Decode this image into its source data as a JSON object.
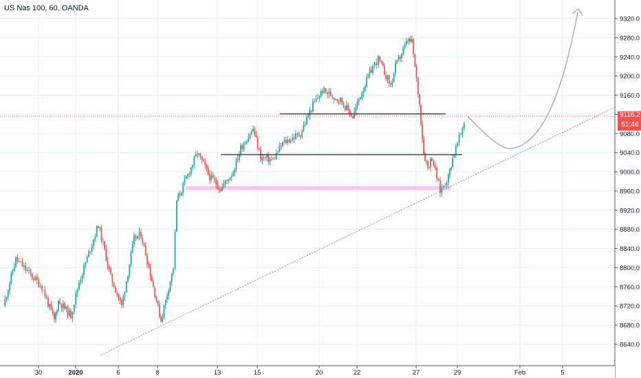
{
  "title": "US Nas 100, 60, OANDA",
  "current_price_label": "9116.2",
  "countdown_label": "51:46",
  "colors": {
    "up": "#26a69a",
    "down": "#ef5350",
    "grid": "#e7eef5",
    "axis_text": "#131722",
    "level_line": "#3a3a3a",
    "support_zone": "#f8c6f0",
    "projection": "#b0b3b8",
    "trendline": "#8a8d91",
    "price_line": "#ef5350"
  },
  "chart_data": {
    "type": "candlestick",
    "title": "US Nas 100, 60, OANDA",
    "timeframe": "60",
    "ylim": [
      8620,
      9350
    ],
    "y_ticks": [
      9320.0,
      9280.0,
      9240.0,
      9200.0,
      9160.0,
      9120.0,
      9080.0,
      9040.0,
      9000.0,
      8960.0,
      8920.0,
      8880.0,
      8840.0,
      8800.0,
      8760.0,
      8720.0,
      8680.0,
      8640.0
    ],
    "x_ticks": [
      "30",
      "2020",
      "6",
      "8",
      "13",
      "15",
      "20",
      "22",
      "27",
      "29",
      "Feb",
      "5"
    ],
    "grid": true,
    "last_price": 9116.2,
    "price_path": [
      {
        "x": "Dec 27",
        "y": 8720
      },
      {
        "x": "Dec 27 (late)",
        "y": 8818
      },
      {
        "x": "Dec 30",
        "y": 8760
      },
      {
        "x": "Dec 30 (late)",
        "y": 8690
      },
      {
        "x": "Dec 31",
        "y": 8730
      },
      {
        "x": "Dec 31 (late)",
        "y": 8700
      },
      {
        "x": "Jan 2",
        "y": 8770
      },
      {
        "x": "Jan 3",
        "y": 8890
      },
      {
        "x": "Jan 3 (late)",
        "y": 8780
      },
      {
        "x": "Jan 6",
        "y": 8720
      },
      {
        "x": "Jan 6 (late)",
        "y": 8860
      },
      {
        "x": "Jan 7",
        "y": 8870
      },
      {
        "x": "Jan 7 (late)",
        "y": 8760
      },
      {
        "x": "Jan 8",
        "y": 8690
      },
      {
        "x": "Jan 8 (late)",
        "y": 8800
      },
      {
        "x": "Jan 9",
        "y": 8940
      },
      {
        "x": "Jan 10",
        "y": 9040
      },
      {
        "x": "Jan 10 (late)",
        "y": 8990
      },
      {
        "x": "Jan 13",
        "y": 8965
      },
      {
        "x": "Jan 13 (late)",
        "y": 9000
      },
      {
        "x": "Jan 14",
        "y": 9050
      },
      {
        "x": "Jan 14 (late)",
        "y": 9090
      },
      {
        "x": "Jan 15",
        "y": 9030
      },
      {
        "x": "Jan 15 (late)",
        "y": 9025
      },
      {
        "x": "Jan 16",
        "y": 9060
      },
      {
        "x": "Jan 17",
        "y": 9080
      },
      {
        "x": "Jan 17 (late)",
        "y": 9140
      },
      {
        "x": "Jan 20",
        "y": 9170
      },
      {
        "x": "Jan 21",
        "y": 9150
      },
      {
        "x": "Jan 21 (late)",
        "y": 9115
      },
      {
        "x": "Jan 22",
        "y": 9160
      },
      {
        "x": "Jan 22 (late)",
        "y": 9220
      },
      {
        "x": "Jan 23",
        "y": 9235
      },
      {
        "x": "Jan 23 (late)",
        "y": 9180
      },
      {
        "x": "Jan 24",
        "y": 9220
      },
      {
        "x": "Jan 24 (late)",
        "y": 9275
      },
      {
        "x": "Jan 24 (close)",
        "y": 9270
      },
      {
        "x": "Jan 27",
        "y": 9140
      },
      {
        "x": "Jan 27 (early)",
        "y": 9040
      },
      {
        "x": "Jan 27 (mid)",
        "y": 9010
      },
      {
        "x": "Jan 27 (late)",
        "y": 9030
      },
      {
        "x": "Jan 28",
        "y": 8960
      },
      {
        "x": "Jan 28 (mid)",
        "y": 8990
      },
      {
        "x": "Jan 28 (late)",
        "y": 9030
      },
      {
        "x": "Jan 29",
        "y": 9080
      },
      {
        "x": "Jan 29 (mid)",
        "y": 9140
      },
      {
        "x": "Jan 29 (late)",
        "y": 9116.2
      }
    ],
    "horizontal_levels": [
      {
        "price": 9121,
        "from": "Jan 16",
        "to": "Jan 29"
      },
      {
        "price": 9036,
        "from": "Jan 13",
        "to": "Jan 29"
      }
    ],
    "support_zone": {
      "price_low": 8962,
      "price_high": 8970,
      "from": "Jan 10",
      "to": "Jan 28"
    },
    "trendline": {
      "from": {
        "x": "Jan 2",
        "y": 8618
      },
      "to": {
        "x": "Feb 7",
        "y": 9135
      }
    },
    "projection": [
      {
        "x": "Jan 29",
        "y": 9116
      },
      {
        "x": "Feb 1",
        "y": 9050
      },
      {
        "x": "Feb 4",
        "y": 9160
      },
      {
        "x": "Feb 5",
        "y": 9325
      }
    ]
  }
}
